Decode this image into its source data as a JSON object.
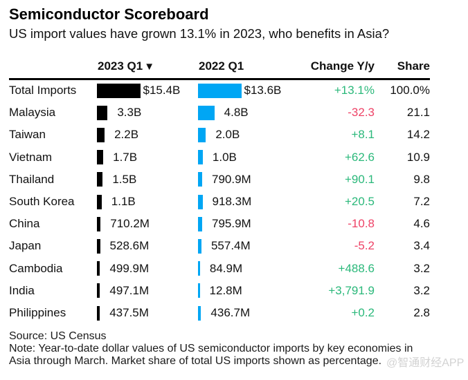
{
  "header": {
    "title": "Semiconductor Scoreboard",
    "subtitle": "US import values have grown 13.1% in 2023, who benefits in Asia?"
  },
  "columns": {
    "current": "2023 Q1",
    "current_sort_icon": "▼",
    "previous": "2022 Q1",
    "change": "Change Y/y",
    "share": "Share"
  },
  "colors": {
    "bar_current": "#000000",
    "bar_previous": "#00a6f4",
    "positive": "#2ab87a",
    "negative": "#ee4266"
  },
  "chart_data": {
    "type": "table",
    "title": "Semiconductor Scoreboard",
    "subtitle": "US import values have grown 13.1% in 2023, who benefits in Asia?",
    "columns": [
      "",
      "2023 Q1",
      "2022 Q1",
      "Change Y/y",
      "Share"
    ],
    "units": "US dollars (billions for bar values)",
    "categories": [
      "Total Imports",
      "Malaysia",
      "Taiwan",
      "Vietnam",
      "Thailand",
      "South Korea",
      "China",
      "Japan",
      "Cambodia",
      "India",
      "Philippines"
    ],
    "series": [
      {
        "name": "2023 Q1",
        "values": [
          15.4,
          3.3,
          2.2,
          1.7,
          1.5,
          1.1,
          0.7102,
          0.5286,
          0.4999,
          0.4971,
          0.4375
        ]
      },
      {
        "name": "2022 Q1",
        "values": [
          13.6,
          4.8,
          2.0,
          1.0,
          0.7909,
          0.9183,
          0.7959,
          0.5574,
          0.0849,
          0.0128,
          0.4367
        ]
      },
      {
        "name": "Change Y/y (%)",
        "values": [
          13.1,
          -32.3,
          8.1,
          62.6,
          90.1,
          20.5,
          -10.8,
          -5.2,
          488.6,
          3791.9,
          0.2
        ]
      },
      {
        "name": "Share (%)",
        "values": [
          100.0,
          21.1,
          14.2,
          10.9,
          9.8,
          7.2,
          4.6,
          3.4,
          3.2,
          3.2,
          2.8
        ]
      }
    ]
  },
  "rows": [
    {
      "name": "Total Imports",
      "current_label": "$15.4B",
      "current_value": 15.4,
      "previous_label": "$13.6B",
      "previous_value": 13.6,
      "change": "+13.1%",
      "change_value": 13.1,
      "share": "100.0%"
    },
    {
      "name": "Malaysia",
      "current_label": "3.3B",
      "current_value": 3.3,
      "previous_label": "4.8B",
      "previous_value": 4.8,
      "change": "-32.3",
      "change_value": -32.3,
      "share": "21.1"
    },
    {
      "name": "Taiwan",
      "current_label": "2.2B",
      "current_value": 2.2,
      "previous_label": "2.0B",
      "previous_value": 2.0,
      "change": "+8.1",
      "change_value": 8.1,
      "share": "14.2"
    },
    {
      "name": "Vietnam",
      "current_label": "1.7B",
      "current_value": 1.7,
      "previous_label": "1.0B",
      "previous_value": 1.0,
      "change": "+62.6",
      "change_value": 62.6,
      "share": "10.9"
    },
    {
      "name": "Thailand",
      "current_label": "1.5B",
      "current_value": 1.5,
      "previous_label": "790.9M",
      "previous_value": 0.7909,
      "change": "+90.1",
      "change_value": 90.1,
      "share": "9.8"
    },
    {
      "name": "South Korea",
      "current_label": "1.1B",
      "current_value": 1.1,
      "previous_label": "918.3M",
      "previous_value": 0.9183,
      "change": "+20.5",
      "change_value": 20.5,
      "share": "7.2"
    },
    {
      "name": "China",
      "current_label": "710.2M",
      "current_value": 0.7102,
      "previous_label": "795.9M",
      "previous_value": 0.7959,
      "change": "-10.8",
      "change_value": -10.8,
      "share": "4.6"
    },
    {
      "name": "Japan",
      "current_label": "528.6M",
      "current_value": 0.5286,
      "previous_label": "557.4M",
      "previous_value": 0.5574,
      "change": "-5.2",
      "change_value": -5.2,
      "share": "3.4"
    },
    {
      "name": "Cambodia",
      "current_label": "499.9M",
      "current_value": 0.4999,
      "previous_label": "84.9M",
      "previous_value": 0.0849,
      "change": "+488.6",
      "change_value": 488.6,
      "share": "3.2"
    },
    {
      "name": "India",
      "current_label": "497.1M",
      "current_value": 0.4971,
      "previous_label": "12.8M",
      "previous_value": 0.0128,
      "change": "+3,791.9",
      "change_value": 3791.9,
      "share": "3.2"
    },
    {
      "name": "Philippines",
      "current_label": "437.5M",
      "current_value": 0.4375,
      "previous_label": "436.7M",
      "previous_value": 0.4367,
      "change": "+0.2",
      "change_value": 0.2,
      "share": "2.8"
    }
  ],
  "footer": {
    "source": "Source: US Census",
    "note": "Note: Year-to-date dollar values of US semiconductor imports by key economies in Asia through March. Market share of total US imports shown as percentage."
  },
  "watermark": "@智通财经APP"
}
